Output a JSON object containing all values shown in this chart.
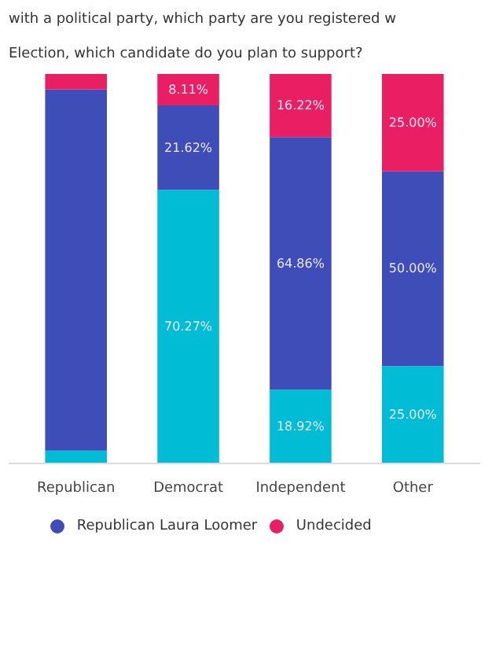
{
  "chart_data": {
    "type": "bar",
    "stacked": true,
    "title": "with a political party, which party are you registered w",
    "subtitle": "Election, which candidate do you plan to support?",
    "categories": [
      "Republican",
      "Democrat",
      "Independent",
      "Other"
    ],
    "series": [
      {
        "color": "#00bcd4",
        "values": [
          3.3,
          70.27,
          18.92,
          25.0
        ],
        "value_labels": [
          null,
          "70.27%",
          "18.92%",
          "25.00%"
        ]
      },
      {
        "name": "Republican Laura Loomer",
        "color": "#3f4db8",
        "values": [
          92.7,
          21.62,
          64.86,
          50.0
        ],
        "value_labels": [
          null,
          "21.62%",
          "64.86%",
          "50.00%"
        ]
      },
      {
        "name": "Undecided",
        "color": "#e91e63",
        "values": [
          4.0,
          8.11,
          16.22,
          25.0
        ],
        "value_labels": [
          null,
          "8.11%",
          "16.22%",
          "25.00%"
        ]
      }
    ],
    "legend": "bottom",
    "grid": false
  }
}
